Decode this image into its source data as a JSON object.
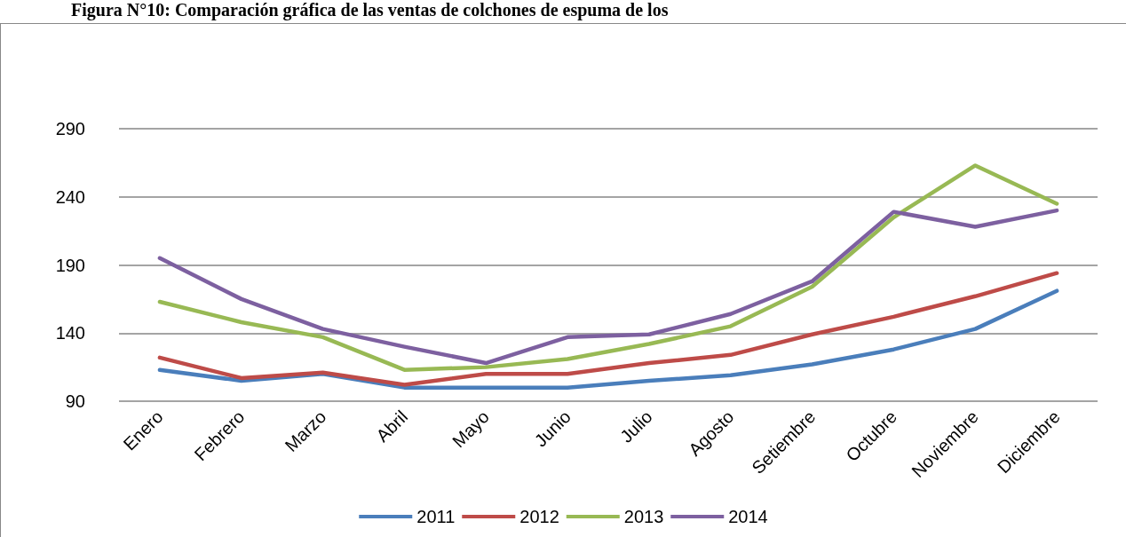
{
  "chart_data": {
    "type": "line",
    "title": "Figura N°10: Comparación gráfica de las ventas de colchones de espuma de los",
    "categories": [
      "Enero",
      "Febrero",
      "Marzo",
      "Abril",
      "Mayo",
      "Junio",
      "Julio",
      "Agosto",
      "Setiembre",
      "Octubre",
      "Noviembre",
      "Diciembre"
    ],
    "series": [
      {
        "name": "2011",
        "color": "#4a7ebb",
        "values": [
          113,
          105,
          110,
          100,
          100,
          100,
          105,
          109,
          117,
          128,
          143,
          171
        ]
      },
      {
        "name": "2012",
        "color": "#be4b48",
        "values": [
          122,
          107,
          111,
          102,
          110,
          110,
          118,
          124,
          139,
          152,
          167,
          184
        ]
      },
      {
        "name": "2013",
        "color": "#98b954",
        "values": [
          163,
          148,
          137,
          113,
          115,
          121,
          132,
          145,
          174,
          225,
          263,
          235
        ]
      },
      {
        "name": "2014",
        "color": "#7d60a0",
        "values": [
          195,
          165,
          143,
          130,
          118,
          137,
          139,
          154,
          178,
          229,
          218,
          230
        ]
      }
    ],
    "ylim": [
      90,
      290
    ],
    "yticks": [
      90,
      140,
      190,
      240,
      290
    ],
    "grid": "y",
    "legend": "bottom",
    "marker": "none",
    "line_style": "solid"
  }
}
